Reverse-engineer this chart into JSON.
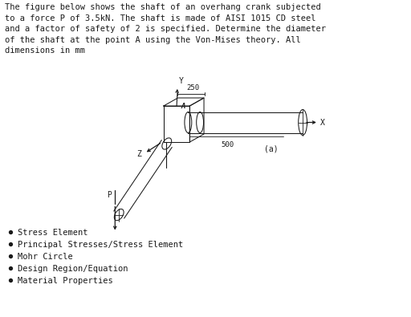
{
  "title_text": "The figure below shows the shaft of an overhang crank subjected\nto a force P of 3.5kN. The shaft is made of AISI 1015 CD steel\nand a factor of safety of 2 is specified. Determine the diameter\nof the shaft at the point A using the Von-Mises theory. All\ndimensions in mm",
  "bullet_items": [
    "Stress Element",
    "Principal Stresses/Stress Element",
    "Mohr Circle",
    "Design Region/Equation",
    "Material Properties"
  ],
  "dim_250": "250",
  "dim_500": "500",
  "label_a": "A",
  "label_y": "Y",
  "label_z": "Z",
  "label_x": "X",
  "label_p": "P",
  "label_a_fig": "(a)",
  "bg_color": "#ffffff",
  "line_color": "#1a1a1a",
  "text_color": "#1a1a1a",
  "font_size_body": 7.5,
  "font_size_labels": 7.0,
  "font_family": "monospace"
}
